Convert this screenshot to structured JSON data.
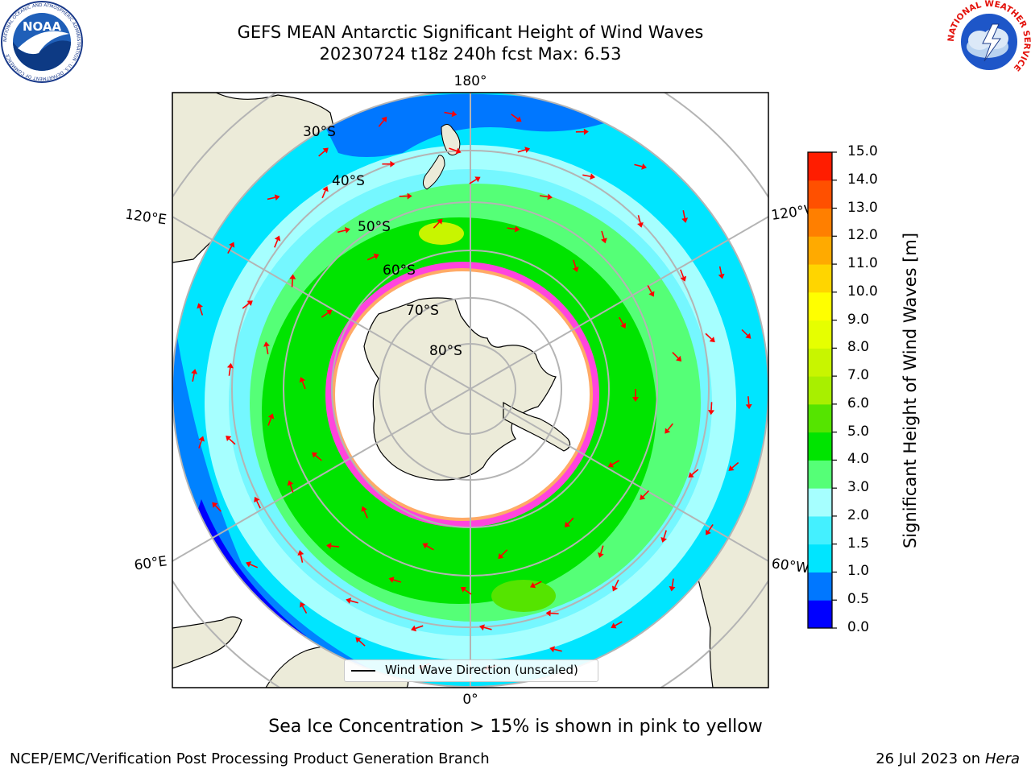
{
  "title": {
    "line1": "GEFS MEAN Antarctic Significant Height of Wind Waves",
    "line2": "20230724 t18z 240h fcst   Max: 6.53"
  },
  "map": {
    "projection": "south-polar-stereographic",
    "longitude_labels": {
      "top": "180°",
      "bottom": "0°",
      "upper_left": "120°E",
      "upper_right": "120°W",
      "lower_left": "60°E",
      "lower_right": "60°W"
    },
    "latitude_labels": [
      "30°S",
      "40°S",
      "50°S",
      "60°S",
      "70°S",
      "80°S"
    ],
    "legend": "Wind Wave Direction (unscaled)",
    "colors": {
      "land": "#ecebd9",
      "sea_ice_free": "#ffffff",
      "graticule": "#b4b4b4",
      "arrow": "#ff0000"
    }
  },
  "colorbar": {
    "label": "Significant Height of Wind Waves [m]",
    "ticks": [
      "0.0",
      "0.5",
      "1.0",
      "1.5",
      "2.0",
      "3.0",
      "4.0",
      "5.0",
      "6.0",
      "7.0",
      "8.0",
      "9.0",
      "10.0",
      "11.0",
      "12.0",
      "13.0",
      "14.0",
      "15.0"
    ],
    "colors": [
      "#0000ff",
      "#0077ff",
      "#00e5ff",
      "#44f0ff",
      "#a6ffff",
      "#55ff77",
      "#00e400",
      "#55e400",
      "#a8ef00",
      "#c8f500",
      "#e6ff00",
      "#ffff00",
      "#ffd500",
      "#ffaa00",
      "#ff7f00",
      "#ff5000",
      "#ff1d00"
    ]
  },
  "note": "Sea Ice Concentration > 15% is shown in pink to yellow",
  "footer": {
    "left": "NCEP/EMC/Verification Post Processing Product Generation Branch",
    "right_date": "26 Jul 2023 on ",
    "right_machine": "Hera"
  },
  "logos": {
    "left": "NOAA",
    "left_ring": "NATIONAL OCEANIC AND ATMOSPHERIC ADMINISTRATION · U.S. DEPARTMENT OF COMMERCE",
    "right_ring": "NATIONAL WEATHER SERVICE"
  }
}
